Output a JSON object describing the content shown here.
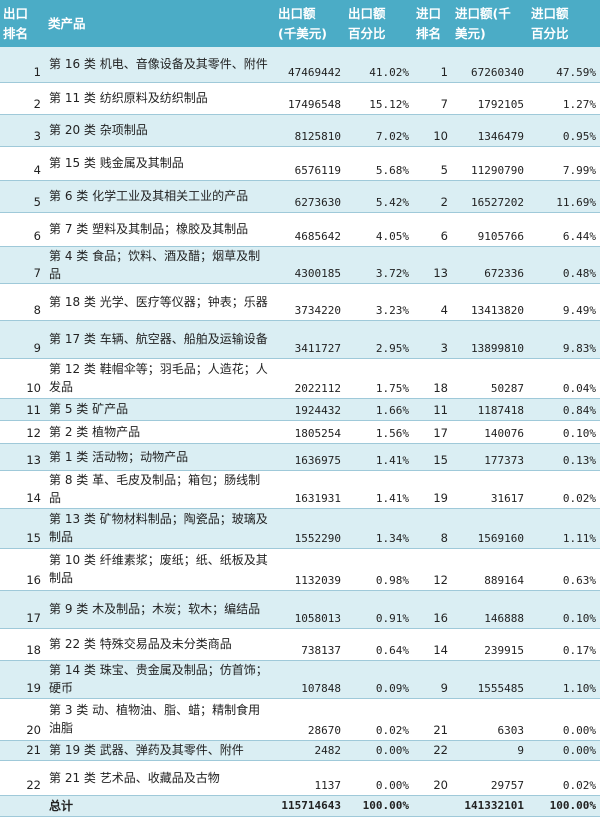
{
  "headers": [
    "出口排名",
    "类产品",
    "出口额(千美元)",
    "出口额百分比",
    "进口排名",
    "进口额(千美元)",
    "进口额百分比"
  ],
  "header_lines": [
    [
      "出口",
      "排名"
    ],
    [
      "类产品"
    ],
    [
      "出口额",
      "(千美元)"
    ],
    [
      "出口额",
      "百分比"
    ],
    [
      "进口",
      "排名"
    ],
    [
      "进口额(千",
      "美元)"
    ],
    [
      "进口额",
      "百分比"
    ]
  ],
  "rows": [
    {
      "rank": "1",
      "product": "第 16 类 机电、音像设备及其零件、附件",
      "export": "47469442",
      "export_pct": "41.02%",
      "import_rank": "1",
      "import": "67260340",
      "import_pct": "47.59%"
    },
    {
      "rank": "2",
      "product": "第 11 类 纺织原料及纺织制品",
      "export": "17496548",
      "export_pct": "15.12%",
      "import_rank": "7",
      "import": "1792105",
      "import_pct": "1.27%"
    },
    {
      "rank": "3",
      "product": "第 20 类 杂项制品",
      "export": "8125810",
      "export_pct": "7.02%",
      "import_rank": "10",
      "import": "1346479",
      "import_pct": "0.95%"
    },
    {
      "rank": "4",
      "product": "第 15 类 贱金属及其制品",
      "export": "6576119",
      "export_pct": "5.68%",
      "import_rank": "5",
      "import": "11290790",
      "import_pct": "7.99%"
    },
    {
      "rank": "5",
      "product": "第 6 类 化学工业及其相关工业的产品",
      "export": "6273630",
      "export_pct": "5.42%",
      "import_rank": "2",
      "import": "16527202",
      "import_pct": "11.69%"
    },
    {
      "rank": "6",
      "product": "第 7 类 塑料及其制品；橡胶及其制品",
      "export": "4685642",
      "export_pct": "4.05%",
      "import_rank": "6",
      "import": "9105766",
      "import_pct": "6.44%"
    },
    {
      "rank": "7",
      "product": "第 4 类 食品；饮料、酒及醋；烟草及制品",
      "export": "4300185",
      "export_pct": "3.72%",
      "import_rank": "13",
      "import": "672336",
      "import_pct": "0.48%"
    },
    {
      "rank": "8",
      "product": "第 18 类 光学、医疗等仪器；钟表；乐器",
      "export": "3734220",
      "export_pct": "3.23%",
      "import_rank": "4",
      "import": "13413820",
      "import_pct": "9.49%"
    },
    {
      "rank": "9",
      "product": "第 17 类 车辆、航空器、船舶及运输设备",
      "export": "3411727",
      "export_pct": "2.95%",
      "import_rank": "3",
      "import": "13899810",
      "import_pct": "9.83%"
    },
    {
      "rank": "10",
      "product": "第 12 类 鞋帽伞等；羽毛品；人造花；人发品",
      "export": "2022112",
      "export_pct": "1.75%",
      "import_rank": "18",
      "import": "50287",
      "import_pct": "0.04%"
    },
    {
      "rank": "11",
      "product": "第 5 类 矿产品",
      "export": "1924432",
      "export_pct": "1.66%",
      "import_rank": "11",
      "import": "1187418",
      "import_pct": "0.84%"
    },
    {
      "rank": "12",
      "product": "第 2 类 植物产品",
      "export": "1805254",
      "export_pct": "1.56%",
      "import_rank": "17",
      "import": "140076",
      "import_pct": "0.10%"
    },
    {
      "rank": "13",
      "product": "第 1 类 活动物；动物产品",
      "export": "1636975",
      "export_pct": "1.41%",
      "import_rank": "15",
      "import": "177373",
      "import_pct": "0.13%"
    },
    {
      "rank": "14",
      "product": "第 8 类 革、毛皮及制品；箱包；肠线制品",
      "export": "1631931",
      "export_pct": "1.41%",
      "import_rank": "19",
      "import": "31617",
      "import_pct": "0.02%"
    },
    {
      "rank": "15",
      "product": "第 13 类 矿物材料制品；陶瓷品；玻璃及制品",
      "export": "1552290",
      "export_pct": "1.34%",
      "import_rank": "8",
      "import": "1569160",
      "import_pct": "1.11%"
    },
    {
      "rank": "16",
      "product": "第 10 类 纤维素浆；废纸；纸、纸板及其制品",
      "export": "1132039",
      "export_pct": "0.98%",
      "import_rank": "12",
      "import": "889164",
      "import_pct": "0.63%"
    },
    {
      "rank": "17",
      "product": "第 9 类 木及制品；木炭；软木；编结品",
      "export": "1058013",
      "export_pct": "0.91%",
      "import_rank": "16",
      "import": "146888",
      "import_pct": "0.10%"
    },
    {
      "rank": "18",
      "product": "第 22 类 特殊交易品及未分类商品",
      "export": "738137",
      "export_pct": "0.64%",
      "import_rank": "14",
      "import": "239915",
      "import_pct": "0.17%"
    },
    {
      "rank": "19",
      "product": "第 14 类 珠宝、贵金属及制品；仿首饰；硬币",
      "export": "107848",
      "export_pct": "0.09%",
      "import_rank": "9",
      "import": "1555485",
      "import_pct": "1.10%"
    },
    {
      "rank": "20",
      "product": "第 3 类 动、植物油、脂、蜡；精制食用油脂",
      "export": "28670",
      "export_pct": "0.02%",
      "import_rank": "21",
      "import": "6303",
      "import_pct": "0.00%"
    },
    {
      "rank": "21",
      "product": "第 19 类 武器、弹药及其零件、附件",
      "export": "2482",
      "export_pct": "0.00%",
      "import_rank": "22",
      "import": "9",
      "import_pct": "0.00%"
    },
    {
      "rank": "22",
      "product": "第 21 类 艺术品、收藏品及古物",
      "export": "1137",
      "export_pct": "0.00%",
      "import_rank": "20",
      "import": "29757",
      "import_pct": "0.02%"
    }
  ],
  "total": {
    "label": "总计",
    "export": "115714643",
    "export_pct": "100.00%",
    "import": "141332101",
    "import_pct": "100.00%"
  },
  "colors": {
    "header": "#4bacc6",
    "band": "#daeef3"
  }
}
